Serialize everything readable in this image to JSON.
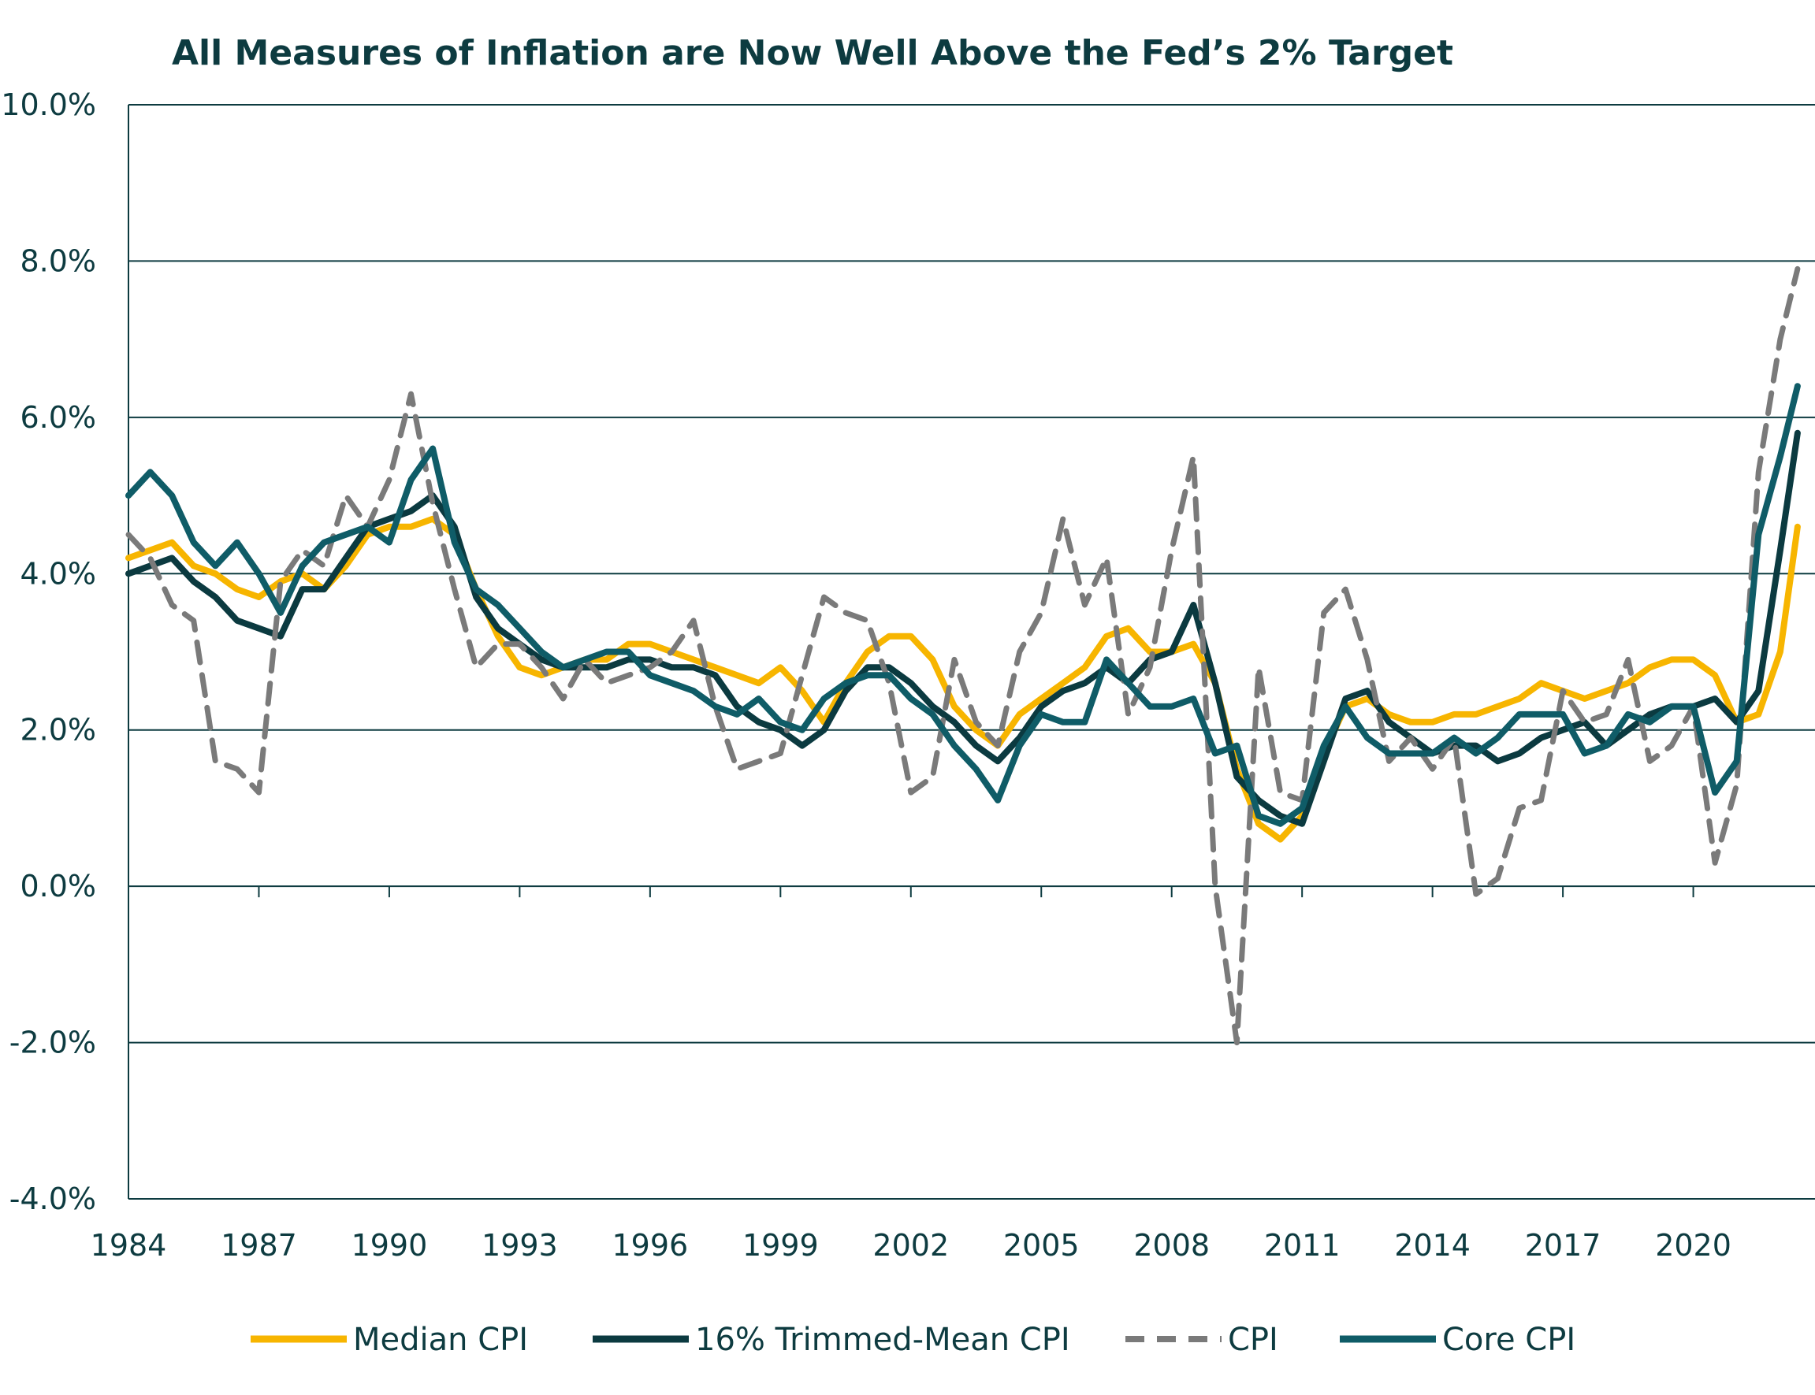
{
  "chart_data": {
    "type": "line",
    "title": "All Measures of Inflation are Now Well Above the Fed’s 2% Target",
    "xlabel": "",
    "ylabel": "",
    "ylim": [
      -4.0,
      10.0
    ],
    "xlim": [
      1984.0,
      2022.8
    ],
    "grid": "horizontal",
    "legend_position": "bottom",
    "y_tick_labels": [
      "-4.0%",
      "-2.0%",
      "0.0%",
      "2.0%",
      "4.0%",
      "6.0%",
      "8.0%",
      "10.0%"
    ],
    "y_tick_values": [
      -4,
      -2,
      0,
      2,
      4,
      6,
      8,
      10
    ],
    "x_tick_labels": [
      "1984",
      "1987",
      "1990",
      "1993",
      "1996",
      "1999",
      "2002",
      "2005",
      "2008",
      "2011",
      "2014",
      "2017",
      "2020"
    ],
    "x_tick_values": [
      1984,
      1987,
      1990,
      1993,
      1996,
      1999,
      2002,
      2005,
      2008,
      2011,
      2014,
      2017,
      2020
    ],
    "series": [
      {
        "name": "Median CPI",
        "color": "#f7b500",
        "style": "solid",
        "x": [
          1984.0,
          1984.5,
          1985.0,
          1985.5,
          1986.0,
          1986.5,
          1987.0,
          1987.5,
          1988.0,
          1988.5,
          1989.0,
          1989.5,
          1990.0,
          1990.5,
          1991.0,
          1991.5,
          1992.0,
          1992.5,
          1993.0,
          1993.5,
          1994.0,
          1994.5,
          1995.0,
          1995.5,
          1996.0,
          1996.5,
          1997.0,
          1997.5,
          1998.0,
          1998.5,
          1999.0,
          1999.5,
          2000.0,
          2000.5,
          2001.0,
          2001.5,
          2002.0,
          2002.5,
          2003.0,
          2003.5,
          2004.0,
          2004.5,
          2005.0,
          2005.5,
          2006.0,
          2006.5,
          2007.0,
          2007.5,
          2008.0,
          2008.5,
          2009.0,
          2009.5,
          2010.0,
          2010.5,
          2011.0,
          2011.5,
          2012.0,
          2012.5,
          2013.0,
          2013.5,
          2014.0,
          2014.5,
          2015.0,
          2015.5,
          2016.0,
          2016.5,
          2017.0,
          2017.5,
          2018.0,
          2018.5,
          2019.0,
          2019.5,
          2020.0,
          2020.5,
          2021.0,
          2021.5,
          2022.0,
          2022.4
        ],
        "y": [
          4.2,
          4.3,
          4.4,
          4.1,
          4.0,
          3.8,
          3.7,
          3.9,
          4.0,
          3.8,
          4.1,
          4.5,
          4.6,
          4.6,
          4.7,
          4.5,
          3.8,
          3.2,
          2.8,
          2.7,
          2.8,
          2.9,
          2.9,
          3.1,
          3.1,
          3.0,
          2.9,
          2.8,
          2.7,
          2.6,
          2.8,
          2.5,
          2.1,
          2.6,
          3.0,
          3.2,
          3.2,
          2.9,
          2.3,
          2.0,
          1.8,
          2.2,
          2.4,
          2.6,
          2.8,
          3.2,
          3.3,
          3.0,
          3.0,
          3.1,
          2.6,
          1.5,
          0.8,
          0.6,
          0.9,
          1.7,
          2.3,
          2.4,
          2.2,
          2.1,
          2.1,
          2.2,
          2.2,
          2.3,
          2.4,
          2.6,
          2.5,
          2.4,
          2.5,
          2.6,
          2.8,
          2.9,
          2.9,
          2.7,
          2.1,
          2.2,
          3.0,
          4.6
        ]
      },
      {
        "name": "16% Trimmed-Mean CPI",
        "color": "#0b3a40",
        "style": "solid",
        "x": [
          1984.0,
          1984.5,
          1985.0,
          1985.5,
          1986.0,
          1986.5,
          1987.0,
          1987.5,
          1988.0,
          1988.5,
          1989.0,
          1989.5,
          1990.0,
          1990.5,
          1991.0,
          1991.5,
          1992.0,
          1992.5,
          1993.0,
          1993.5,
          1994.0,
          1994.5,
          1995.0,
          1995.5,
          1996.0,
          1996.5,
          1997.0,
          1997.5,
          1998.0,
          1998.5,
          1999.0,
          1999.5,
          2000.0,
          2000.5,
          2001.0,
          2001.5,
          2002.0,
          2002.5,
          2003.0,
          2003.5,
          2004.0,
          2004.5,
          2005.0,
          2005.5,
          2006.0,
          2006.5,
          2007.0,
          2007.5,
          2008.0,
          2008.5,
          2009.0,
          2009.5,
          2010.0,
          2010.5,
          2011.0,
          2011.5,
          2012.0,
          2012.5,
          2013.0,
          2013.5,
          2014.0,
          2014.5,
          2015.0,
          2015.5,
          2016.0,
          2016.5,
          2017.0,
          2017.5,
          2018.0,
          2018.5,
          2019.0,
          2019.5,
          2020.0,
          2020.5,
          2021.0,
          2021.5,
          2022.0,
          2022.4
        ],
        "y": [
          4.0,
          4.1,
          4.2,
          3.9,
          3.7,
          3.4,
          3.3,
          3.2,
          3.8,
          3.8,
          4.2,
          4.6,
          4.7,
          4.8,
          5.0,
          4.6,
          3.7,
          3.3,
          3.1,
          2.9,
          2.8,
          2.8,
          2.8,
          2.9,
          2.9,
          2.8,
          2.8,
          2.7,
          2.3,
          2.1,
          2.0,
          1.8,
          2.0,
          2.5,
          2.8,
          2.8,
          2.6,
          2.3,
          2.1,
          1.8,
          1.6,
          1.9,
          2.3,
          2.5,
          2.6,
          2.8,
          2.6,
          2.9,
          3.0,
          3.6,
          2.6,
          1.4,
          1.1,
          0.9,
          0.8,
          1.6,
          2.4,
          2.5,
          2.1,
          1.9,
          1.7,
          1.8,
          1.8,
          1.6,
          1.7,
          1.9,
          2.0,
          2.1,
          1.8,
          2.0,
          2.2,
          2.3,
          2.3,
          2.4,
          2.1,
          2.5,
          4.3,
          5.8
        ]
      },
      {
        "name": "CPI",
        "color": "#7a7a7a",
        "style": "dashed",
        "x": [
          1984.0,
          1984.5,
          1985.0,
          1985.5,
          1986.0,
          1986.5,
          1987.0,
          1987.5,
          1988.0,
          1988.5,
          1989.0,
          1989.5,
          1990.0,
          1990.5,
          1991.0,
          1991.5,
          1992.0,
          1992.5,
          1993.0,
          1993.5,
          1994.0,
          1994.5,
          1995.0,
          1995.5,
          1996.0,
          1996.5,
          1997.0,
          1997.5,
          1998.0,
          1998.5,
          1999.0,
          1999.5,
          2000.0,
          2000.5,
          2001.0,
          2001.5,
          2002.0,
          2002.5,
          2003.0,
          2003.5,
          2004.0,
          2004.5,
          2005.0,
          2005.5,
          2006.0,
          2006.5,
          2007.0,
          2007.5,
          2008.0,
          2008.5,
          2009.0,
          2009.5,
          2010.0,
          2010.5,
          2011.0,
          2011.5,
          2012.0,
          2012.5,
          2013.0,
          2013.5,
          2014.0,
          2014.5,
          2015.0,
          2015.5,
          2016.0,
          2016.5,
          2017.0,
          2017.5,
          2018.0,
          2018.5,
          2019.0,
          2019.5,
          2020.0,
          2020.5,
          2021.0,
          2021.5,
          2022.0,
          2022.4
        ],
        "y": [
          4.5,
          4.2,
          3.6,
          3.4,
          1.6,
          1.5,
          1.2,
          3.9,
          4.3,
          4.1,
          5.0,
          4.6,
          5.2,
          6.3,
          4.9,
          3.8,
          2.8,
          3.1,
          3.1,
          2.8,
          2.4,
          2.9,
          2.6,
          2.7,
          2.8,
          3.0,
          3.4,
          2.3,
          1.5,
          1.6,
          1.7,
          2.7,
          3.7,
          3.5,
          3.4,
          2.6,
          1.2,
          1.4,
          2.9,
          2.1,
          1.8,
          3.0,
          3.5,
          4.7,
          3.6,
          4.2,
          2.2,
          2.8,
          4.3,
          5.5,
          0.0,
          -2.0,
          2.8,
          1.2,
          1.1,
          3.5,
          3.8,
          2.9,
          1.6,
          1.9,
          1.5,
          1.9,
          -0.1,
          0.1,
          1.0,
          1.1,
          2.5,
          2.1,
          2.2,
          2.9,
          1.6,
          1.8,
          2.3,
          0.3,
          1.3,
          5.3,
          7.0,
          7.9
        ]
      },
      {
        "name": "Core CPI",
        "color": "#0f5c67",
        "style": "solid",
        "x": [
          1984.0,
          1984.5,
          1985.0,
          1985.5,
          1986.0,
          1986.5,
          1987.0,
          1987.5,
          1988.0,
          1988.5,
          1989.0,
          1989.5,
          1990.0,
          1990.5,
          1991.0,
          1991.5,
          1992.0,
          1992.5,
          1993.0,
          1993.5,
          1994.0,
          1994.5,
          1995.0,
          1995.5,
          1996.0,
          1996.5,
          1997.0,
          1997.5,
          1998.0,
          1998.5,
          1999.0,
          1999.5,
          2000.0,
          2000.5,
          2001.0,
          2001.5,
          2002.0,
          2002.5,
          2003.0,
          2003.5,
          2004.0,
          2004.5,
          2005.0,
          2005.5,
          2006.0,
          2006.5,
          2007.0,
          2007.5,
          2008.0,
          2008.5,
          2009.0,
          2009.5,
          2010.0,
          2010.5,
          2011.0,
          2011.5,
          2012.0,
          2012.5,
          2013.0,
          2013.5,
          2014.0,
          2014.5,
          2015.0,
          2015.5,
          2016.0,
          2016.5,
          2017.0,
          2017.5,
          2018.0,
          2018.5,
          2019.0,
          2019.5,
          2020.0,
          2020.5,
          2021.0,
          2021.5,
          2022.0,
          2022.4
        ],
        "y": [
          5.0,
          5.3,
          5.0,
          4.4,
          4.1,
          4.4,
          4.0,
          3.5,
          4.1,
          4.4,
          4.5,
          4.6,
          4.4,
          5.2,
          5.6,
          4.4,
          3.8,
          3.6,
          3.3,
          3.0,
          2.8,
          2.9,
          3.0,
          3.0,
          2.7,
          2.6,
          2.5,
          2.3,
          2.2,
          2.4,
          2.1,
          2.0,
          2.4,
          2.6,
          2.7,
          2.7,
          2.4,
          2.2,
          1.8,
          1.5,
          1.1,
          1.8,
          2.2,
          2.1,
          2.1,
          2.9,
          2.6,
          2.3,
          2.3,
          2.4,
          1.7,
          1.8,
          0.9,
          0.8,
          1.0,
          1.8,
          2.3,
          1.9,
          1.7,
          1.7,
          1.7,
          1.9,
          1.7,
          1.9,
          2.2,
          2.2,
          2.2,
          1.7,
          1.8,
          2.2,
          2.1,
          2.3,
          2.3,
          1.2,
          1.6,
          4.5,
          5.5,
          6.4
        ]
      }
    ]
  },
  "colors": {
    "title": "#0d3b40",
    "axis": "#0d3b40",
    "grid": "#0d3b40"
  }
}
